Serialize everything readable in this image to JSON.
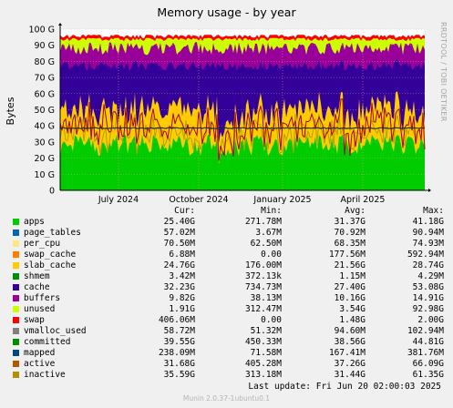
{
  "chart_data": {
    "type": "area",
    "stacked": true,
    "title": "Memory usage - by year",
    "ylabel": "Bytes",
    "side_label": "RRDTOOL / TOBI OETIKER",
    "yticks": [
      "0",
      "10 G",
      "20 G",
      "30 G",
      "40 G",
      "50 G",
      "60 G",
      "70 G",
      "80 G",
      "90 G",
      "100 G"
    ],
    "ylim": [
      0,
      100
    ],
    "y_unit": "G",
    "xticks": [
      "July 2024",
      "October 2024",
      "January 2025",
      "April 2025"
    ],
    "grid": true,
    "columns": [
      "Cur:",
      "Min:",
      "Avg:",
      "Max:"
    ],
    "series": [
      {
        "name": "apps",
        "color": "#00cc00",
        "cur": "25.40G",
        "min": "271.78M",
        "avg": "31.37G",
        "max": "41.18G",
        "area": true
      },
      {
        "name": "page_tables",
        "color": "#0066b3",
        "cur": "57.02M",
        "min": "3.67M",
        "avg": "70.92M",
        "max": "90.94M",
        "area": true
      },
      {
        "name": "per_cpu",
        "color": "#ffe680",
        "cur": "70.50M",
        "min": "62.50M",
        "avg": "68.35M",
        "max": "74.93M",
        "area": true
      },
      {
        "name": "swap_cache",
        "color": "#ff8000",
        "cur": "6.88M",
        "min": "0.00",
        "avg": "177.56M",
        "max": "592.94M",
        "area": true
      },
      {
        "name": "slab_cache",
        "color": "#ffcc00",
        "cur": "24.76G",
        "min": "176.00M",
        "avg": "21.56G",
        "max": "28.74G",
        "area": true
      },
      {
        "name": "shmem",
        "color": "#008f00",
        "cur": "3.42M",
        "min": "372.13k",
        "avg": "1.15M",
        "max": "4.29M",
        "area": true
      },
      {
        "name": "cache",
        "color": "#330099",
        "cur": "32.23G",
        "min": "734.73M",
        "avg": "27.40G",
        "max": "53.08G",
        "area": true
      },
      {
        "name": "buffers",
        "color": "#990099",
        "cur": "9.82G",
        "min": "38.13M",
        "avg": "10.16G",
        "max": "14.91G",
        "area": true
      },
      {
        "name": "unused",
        "color": "#ccff00",
        "cur": "1.91G",
        "min": "312.47M",
        "avg": "3.54G",
        "max": "92.98G",
        "area": true
      },
      {
        "name": "swap",
        "color": "#ff0000",
        "cur": "406.06M",
        "min": "0.00",
        "avg": "1.48G",
        "max": "2.00G",
        "area": true
      },
      {
        "name": "vmalloc_used",
        "color": "#808080",
        "cur": "58.72M",
        "min": "51.32M",
        "avg": "94.60M",
        "max": "102.94M",
        "area": false
      },
      {
        "name": "committed",
        "color": "#008f00",
        "cur": "39.55G",
        "min": "450.33M",
        "avg": "38.56G",
        "max": "44.81G",
        "area": false
      },
      {
        "name": "mapped",
        "color": "#00487d",
        "cur": "238.09M",
        "min": "71.58M",
        "avg": "167.41M",
        "max": "381.76M",
        "area": false
      },
      {
        "name": "active",
        "color": "#b35a00",
        "cur": "31.68G",
        "min": "405.28M",
        "avg": "37.26G",
        "max": "66.09G",
        "area": false
      },
      {
        "name": "inactive",
        "color": "#b38f00",
        "cur": "35.59G",
        "min": "313.18M",
        "avg": "31.44G",
        "max": "61.35G",
        "area": false
      }
    ],
    "lines_shown": [
      {
        "name": "committed",
        "color": "#2a2a2a",
        "level": 38.6
      },
      {
        "name": "active",
        "color": "#b3a000",
        "level": 37
      },
      {
        "name": "inactive",
        "color": "#aa0000",
        "level": 34
      }
    ],
    "stack_levels_approx": {
      "apps": 28,
      "slab_cache": 49,
      "cache": 77,
      "buffers": 88,
      "unused": 94,
      "swap": 96
    }
  },
  "footer": {
    "last_update": "Last update: Fri Jun 20 02:00:03 2025",
    "munin": "Munin 2.0.37-1ubuntu0.1"
  }
}
